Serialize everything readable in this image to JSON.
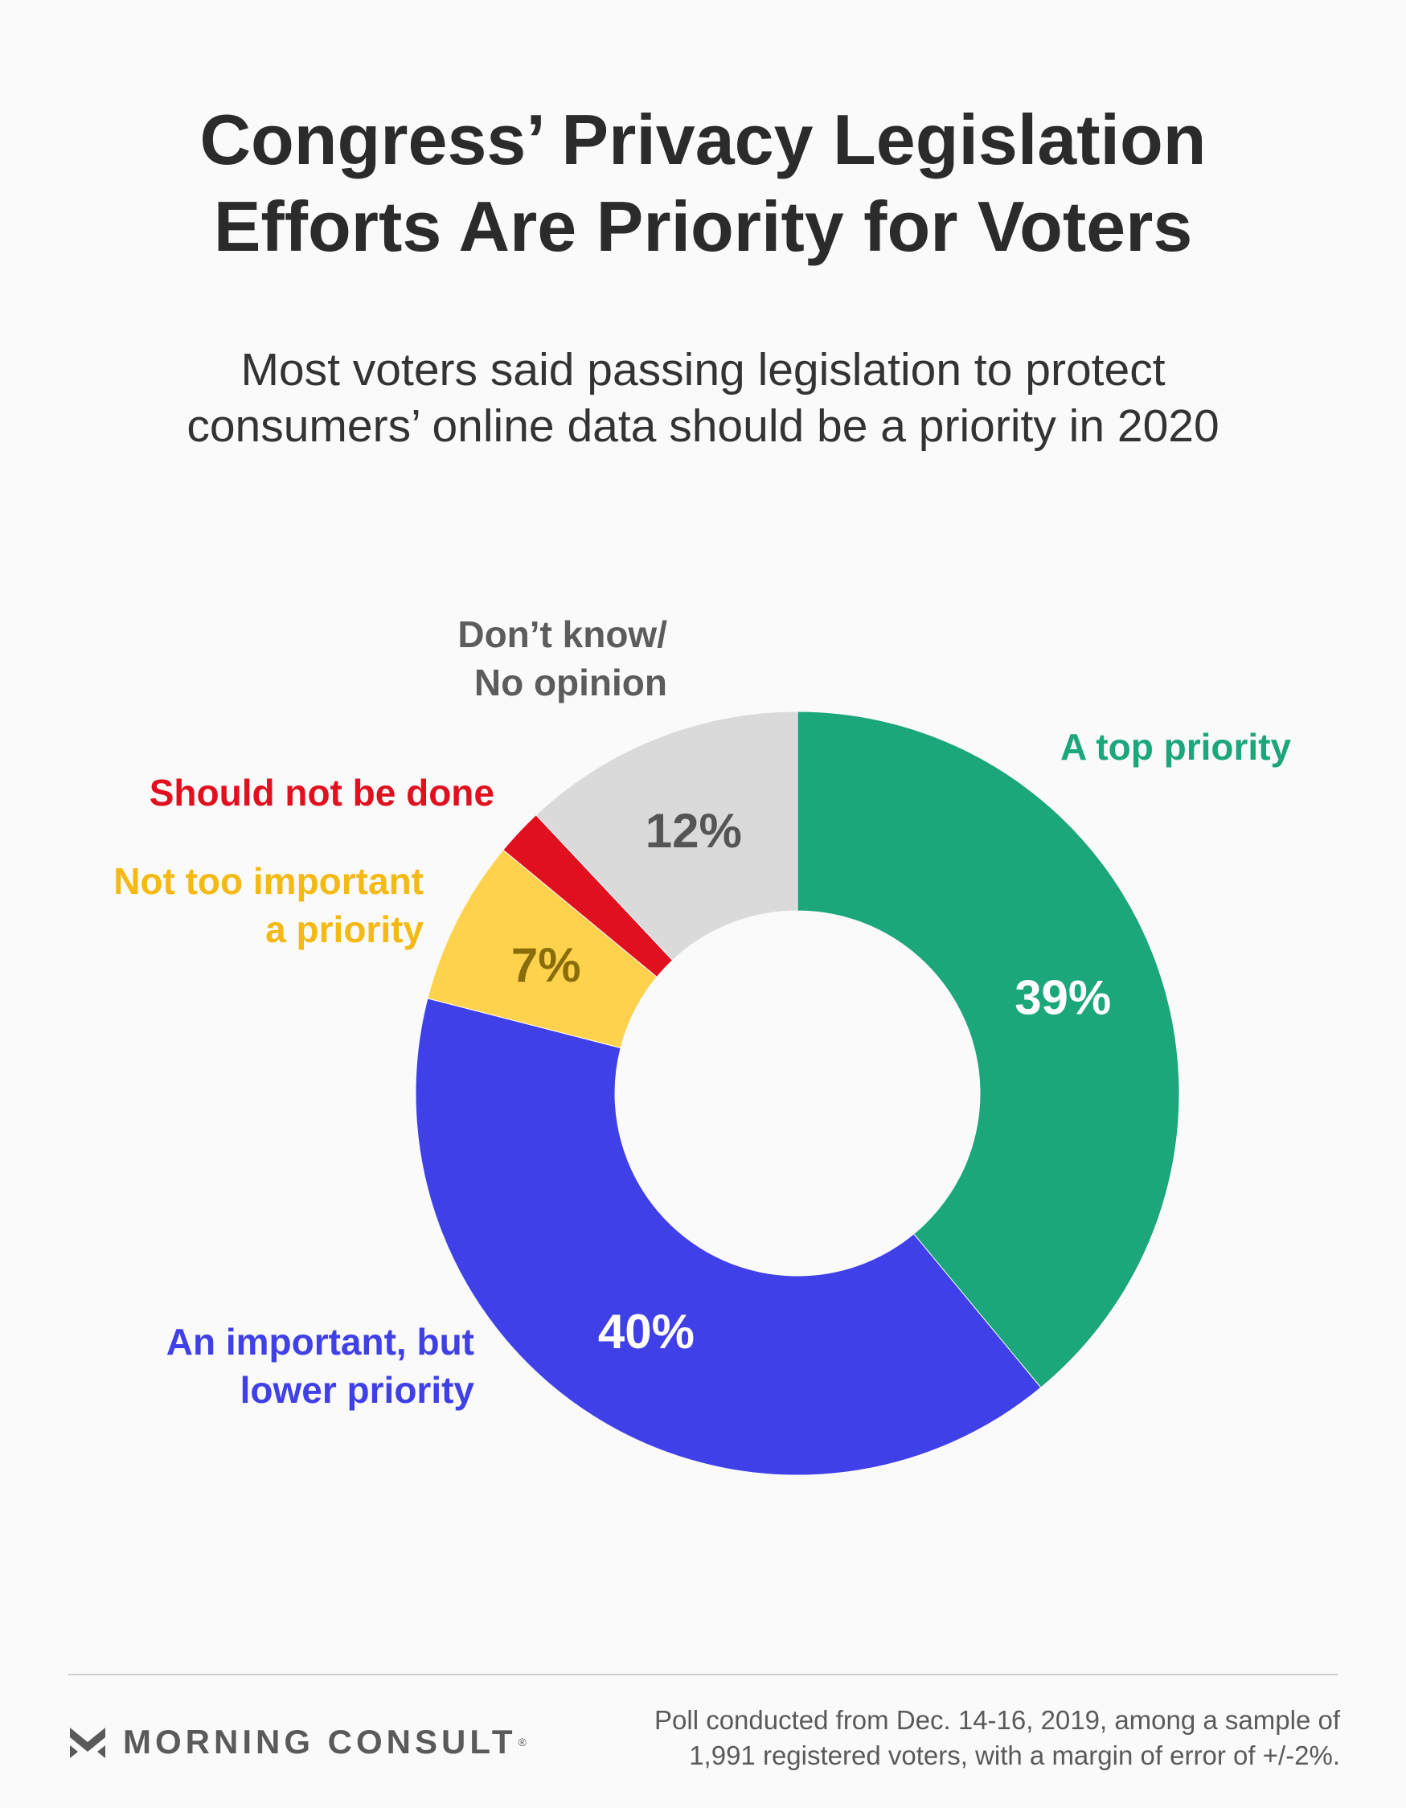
{
  "chart_data": {
    "type": "pie",
    "style": "donut",
    "title": "Congress’ Privacy Legislation Efforts Are Priority for Voters",
    "title_lines": [
      "Congress’ Privacy Legislation",
      "Efforts Are Priority for Voters"
    ],
    "subtitle": "Most voters said passing legislation to protect consumers’ online data should be a priority in 2020",
    "subtitle_lines": [
      "Most voters said passing legislation to protect",
      "consumers’ online data should be a priority in 2020"
    ],
    "categories": [
      "A top priority",
      "An important, but lower priority",
      "Not too important a priority",
      "Should not be done",
      "Don’t know/ No opinion"
    ],
    "values": [
      39,
      40,
      7,
      2,
      12
    ],
    "value_labels": [
      "39%",
      "40%",
      "7%",
      "",
      "12%"
    ],
    "category_label_lines": [
      [
        "A top priority"
      ],
      [
        "An important, but",
        "lower priority"
      ],
      [
        "Not too important",
        "a priority"
      ],
      [
        "Should not be done"
      ],
      [
        "Don’t know/",
        "No opinion"
      ]
    ],
    "colors": [
      "#1ba67c",
      "#4040e8",
      "#ffd24d",
      "#e0101e",
      "#dadada"
    ],
    "label_colors": [
      "#1ba67c",
      "#4040e8",
      "#f5b914",
      "#e0101e",
      "#5c5c5c"
    ],
    "value_label_colors": [
      "#ffffff",
      "#ffffff",
      "#8a6d0b",
      "#ffffff",
      "#555555"
    ]
  },
  "footer": {
    "brand": "MORNING CONSULT",
    "brand_mark": "®",
    "note_lines": [
      "Poll conducted from Dec. 14-16, 2019, among a sample of",
      "1,991 registered voters, with a margin of error of +/-2%."
    ]
  }
}
